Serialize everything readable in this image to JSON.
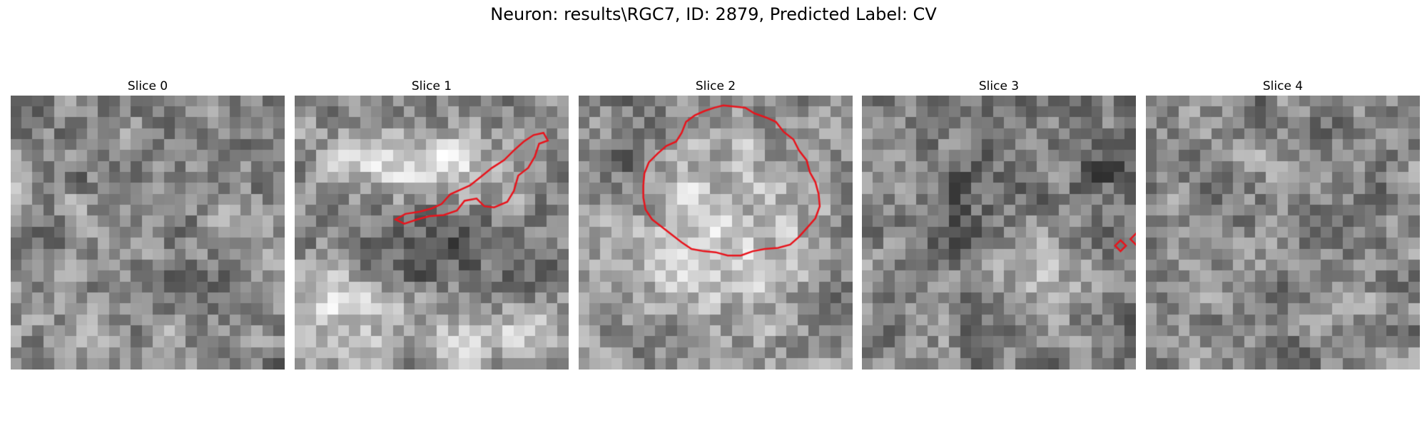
{
  "figure": {
    "title": "Neuron: results\\RGC7, ID: 2879, Predicted Label: CV"
  },
  "panels": [
    {
      "title": "Slice 0",
      "seed": 11,
      "blob": null,
      "contours": []
    },
    {
      "title": "Slice 1",
      "seed": 23,
      "blob": "slice1",
      "contours": [
        [
          [
            23.1,
            4.1
          ],
          [
            22.3,
            4.4
          ],
          [
            21.9,
            5.6
          ],
          [
            21.3,
            6.6
          ],
          [
            20.4,
            7.3
          ],
          [
            20.0,
            8.7
          ],
          [
            19.4,
            9.7
          ],
          [
            18.2,
            10.2
          ],
          [
            17.3,
            10.1
          ],
          [
            16.6,
            9.4
          ],
          [
            15.5,
            9.6
          ],
          [
            14.8,
            10.5
          ],
          [
            13.6,
            10.9
          ],
          [
            12.3,
            11.0
          ],
          [
            11.2,
            11.3
          ],
          [
            10.0,
            11.7
          ],
          [
            9.2,
            11.3
          ],
          [
            10.1,
            10.8
          ],
          [
            11.4,
            10.6
          ],
          [
            12.5,
            10.3
          ],
          [
            13.4,
            9.9
          ],
          [
            14.2,
            9.0
          ],
          [
            15.1,
            8.6
          ],
          [
            16.0,
            8.2
          ],
          [
            17.0,
            7.4
          ],
          [
            18.0,
            6.6
          ],
          [
            19.1,
            5.9
          ],
          [
            20.0,
            5.0
          ],
          [
            20.9,
            4.2
          ],
          [
            21.8,
            3.6
          ],
          [
            22.7,
            3.4
          ]
        ]
      ]
    },
    {
      "title": "Slice 2",
      "seed": 37,
      "blob": "slice2",
      "contours": [
        [
          [
            14.1,
            1.0
          ],
          [
            15.2,
            1.1
          ],
          [
            16.0,
            1.6
          ],
          [
            17.1,
            2.0
          ],
          [
            18.0,
            2.4
          ],
          [
            18.7,
            3.3
          ],
          [
            19.6,
            4.0
          ],
          [
            20.1,
            5.0
          ],
          [
            20.8,
            5.9
          ],
          [
            21.1,
            7.0
          ],
          [
            21.6,
            7.9
          ],
          [
            21.9,
            9.0
          ],
          [
            22.0,
            10.1
          ],
          [
            21.6,
            11.2
          ],
          [
            20.9,
            12.0
          ],
          [
            20.1,
            12.9
          ],
          [
            19.3,
            13.6
          ],
          [
            18.2,
            13.9
          ],
          [
            17.0,
            14.0
          ],
          [
            15.9,
            14.2
          ],
          [
            14.8,
            14.6
          ],
          [
            13.6,
            14.6
          ],
          [
            12.5,
            14.3
          ],
          [
            11.4,
            14.2
          ],
          [
            10.3,
            14.0
          ],
          [
            9.4,
            13.4
          ],
          [
            8.5,
            12.7
          ],
          [
            7.6,
            12.0
          ],
          [
            6.7,
            11.3
          ],
          [
            6.1,
            10.4
          ],
          [
            5.9,
            9.3
          ],
          [
            5.9,
            8.2
          ],
          [
            6.0,
            7.1
          ],
          [
            6.4,
            6.1
          ],
          [
            7.2,
            5.3
          ],
          [
            8.0,
            4.6
          ],
          [
            8.9,
            4.2
          ],
          [
            9.4,
            3.4
          ],
          [
            9.8,
            2.4
          ],
          [
            10.6,
            1.8
          ],
          [
            11.5,
            1.4
          ],
          [
            12.4,
            1.1
          ],
          [
            13.2,
            0.9
          ]
        ]
      ]
    },
    {
      "title": "Slice 3",
      "seed": 53,
      "blob": "slice3",
      "contours": [
        [
          [
            23.6,
            13.2
          ],
          [
            24.1,
            13.7
          ],
          [
            23.6,
            14.2
          ],
          [
            23.1,
            13.7
          ]
        ],
        [
          [
            25.0,
            12.6
          ],
          [
            25.5,
            13.1
          ],
          [
            25.0,
            13.6
          ],
          [
            24.5,
            13.1
          ]
        ]
      ]
    },
    {
      "title": "Slice 4",
      "seed": 71,
      "blob": null,
      "contours": []
    }
  ]
}
